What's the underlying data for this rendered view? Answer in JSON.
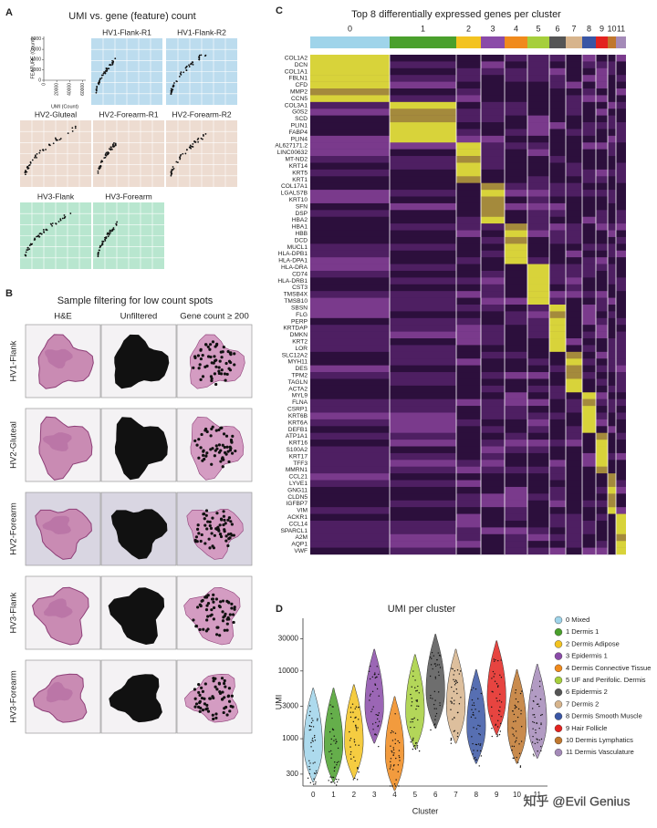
{
  "panel_a": {
    "label": "A",
    "title": "UMI vs. gene (feature) count",
    "y_label": "FEATURE (Count)",
    "x_label": "UMI (Count)",
    "ylim": [
      0,
      8500
    ],
    "yticks": [
      0,
      2000,
      4000,
      6000,
      8000
    ],
    "xlim": [
      0,
      65000
    ],
    "xticks": [
      0,
      20000,
      40000,
      60000
    ],
    "samples": [
      {
        "name": "HV1-Flank-R1",
        "color": "#bcdcee"
      },
      {
        "name": "HV1-Flank-R2",
        "color": "#bcdcee"
      },
      {
        "name": "HV2-Gluteal",
        "color": "#eddcd1"
      },
      {
        "name": "HV2-Forearm-R1",
        "color": "#eddcd1"
      },
      {
        "name": "HV2-Forearm-R2",
        "color": "#eddcd1"
      },
      {
        "name": "HV3-Flank",
        "color": "#b8e6cf"
      },
      {
        "name": "HV3-Forearm",
        "color": "#b8e6cf"
      }
    ]
  },
  "panel_b": {
    "label": "B",
    "title": "Sample filtering for low count spots",
    "columns": [
      "H&E",
      "Unfiltered",
      "Gene count ≥ 200"
    ],
    "rows": [
      "HV1-Flank",
      "HV2-Gluteal",
      "HV2-Forearm",
      "HV3-Flank",
      "HV3-Forearm"
    ]
  },
  "panel_c": {
    "label": "C",
    "title": "Top 8 differentially expressed genes per cluster",
    "clusters": [
      "0",
      "1",
      "2",
      "3",
      "4",
      "5",
      "6",
      "7",
      "8",
      "9",
      "10",
      "11"
    ],
    "cluster_colors": [
      "#9fd4ea",
      "#4aa02c",
      "#f3c320",
      "#8a4ba8",
      "#f08a1c",
      "#a6cf3c",
      "#555555",
      "#d7b48c",
      "#3a56a5",
      "#e3231f",
      "#c0772e",
      "#a48ab8"
    ],
    "genes": [
      "COL1A2",
      "DCN",
      "COL1A1",
      "FBLN1",
      "CFD",
      "MMP2",
      "CCN5",
      "COL3A1",
      "G0S2",
      "SCD",
      "PLIN1",
      "FABP4",
      "PLIN4",
      "AL627171.2",
      "LINC00632",
      "MT-ND2",
      "KRT14",
      "KRT5",
      "KRT1",
      "COL17A1",
      "LGALS7B",
      "KRT10",
      "SFN",
      "DSP",
      "HBA2",
      "HBA1",
      "HBB",
      "DCD",
      "MUCL1",
      "HLA-DPB1",
      "HLA-DPA1",
      "HLA-DRA",
      "CD74",
      "HLA-DRB1",
      "CST3",
      "TMSB4X",
      "TMSB10",
      "SBSN",
      "FLG",
      "PERP",
      "KRTDAP",
      "DMKN",
      "KRT2",
      "LOR",
      "SLC12A2",
      "MYH11",
      "DES",
      "TPM2",
      "TAGLN",
      "ACTA2",
      "MYL9",
      "FLNA",
      "CSRP1",
      "KRT6B",
      "KRT6A",
      "DEFB1",
      "ATP1A1",
      "KRT16",
      "S100A2",
      "KRT17",
      "TFF3",
      "MMRN1",
      "CCL21",
      "LYVE1",
      "GNG11",
      "CLDN5",
      "IGFBP7",
      "VIM",
      "ACKR1",
      "CCL14",
      "SPARCL1",
      "A2M",
      "AQP1",
      "VWF"
    ]
  },
  "chart_data": {
    "type": "violin",
    "label": "D",
    "title": "UMI per cluster",
    "y_label": "UMI",
    "x_label": "Cluster",
    "log_scale": true,
    "categories": [
      "0",
      "1",
      "2",
      "3",
      "4",
      "5",
      "6",
      "7",
      "8",
      "9",
      "10",
      "11"
    ],
    "ylim": [
      200,
      60000
    ],
    "yticks": [
      300,
      1000,
      3000,
      10000,
      30000
    ],
    "series": [
      {
        "name": "Median UMI",
        "values": [
          800,
          800,
          900,
          3000,
          600,
          2500,
          5000,
          3000,
          1500,
          4000,
          1500,
          1800
        ]
      }
    ],
    "legend": [
      "0 Mixed",
      "1 Dermis 1",
      "2 Dermis Adipose",
      "3 Epidermis 1",
      "4 Dermis Connective Tissue",
      "5 UF and Perifolic. Dermis",
      "6 Epidermis 2",
      "7 Dermis 2",
      "8 Dermis Smooth Muscle",
      "9 Hair Follicle",
      "10 Dermis Lymphatics",
      "11 Dermis Vasculature"
    ],
    "colors": [
      "#9fd4ea",
      "#4aa02c",
      "#f3c320",
      "#8a4ba8",
      "#f08a1c",
      "#a6cf3c",
      "#555555",
      "#d7b48c",
      "#3a56a5",
      "#e3231f",
      "#c0772e",
      "#a48ab8"
    ]
  },
  "watermark": "知乎 @Evil Genius"
}
